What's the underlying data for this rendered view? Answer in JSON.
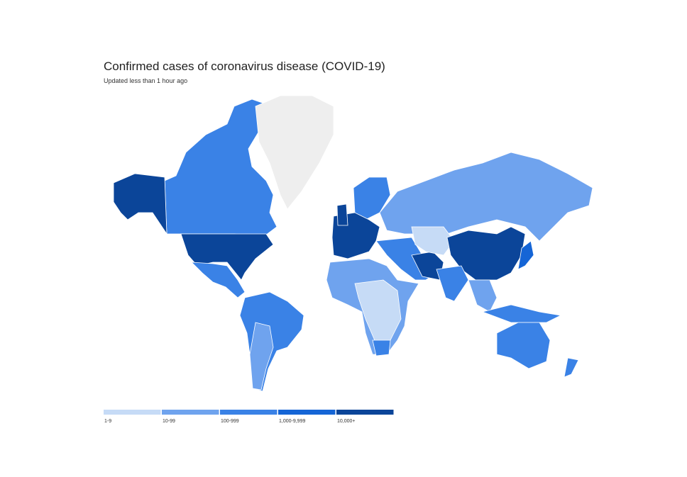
{
  "header": {
    "title": "Confirmed cases of coronavirus disease (COVID-19)",
    "subtitle": "Updated less than 1 hour ago"
  },
  "legend": {
    "items": [
      {
        "label": "1-9",
        "color": "#c6dbf6"
      },
      {
        "label": "10-99",
        "color": "#6fa3ee"
      },
      {
        "label": "100-999",
        "color": "#3a82e6"
      },
      {
        "label": "1,000-9,999",
        "color": "#1565d6"
      },
      {
        "label": "10,000+",
        "color": "#0b4599"
      }
    ]
  }
}
